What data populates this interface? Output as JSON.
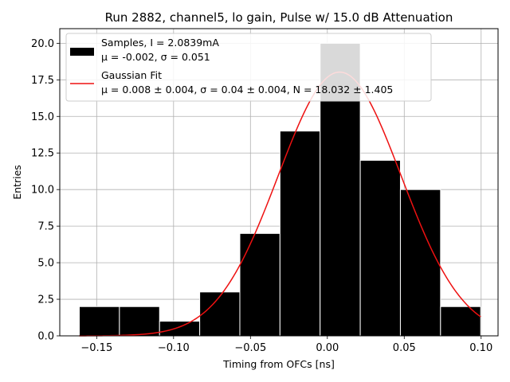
{
  "chart_data": {
    "type": "bar",
    "title": "Run 2882, channel5, lo gain, Pulse w/ 15.0 dB Attenuation",
    "xlabel": "Timing from OFCs [ns]",
    "ylabel": "Entries",
    "xlim": [
      -0.174,
      0.111
    ],
    "ylim": [
      0,
      21
    ],
    "xticks": [
      -0.15,
      -0.1,
      -0.05,
      0.0,
      0.05,
      0.1
    ],
    "xtick_labels": [
      "−0.15",
      "−0.10",
      "−0.05",
      "0.00",
      "0.05",
      "0.10"
    ],
    "yticks": [
      0.0,
      2.5,
      5.0,
      7.5,
      10.0,
      12.5,
      15.0,
      17.5,
      20.0
    ],
    "ytick_labels": [
      "0.0",
      "2.5",
      "5.0",
      "7.5",
      "10.0",
      "12.5",
      "15.0",
      "17.5",
      "20.0"
    ],
    "grid": true,
    "legend_position": "top-left",
    "histogram": {
      "bin_edges": [
        -0.1613,
        -0.1352,
        -0.1091,
        -0.083,
        -0.0569,
        -0.0308,
        -0.0047,
        0.0214,
        0.0475,
        0.0736,
        0.0997
      ],
      "counts": [
        2,
        2,
        1,
        3,
        7,
        14,
        20,
        12,
        10,
        2
      ],
      "color": "#000000",
      "overflow_color": "#c8c8c8",
      "edge_color": "#ffffff"
    },
    "gaussian_fit": {
      "mu": 0.008,
      "sigma": 0.04,
      "N": 18.032,
      "x_range": [
        -0.1613,
        0.0997
      ],
      "color": "#ee1111"
    },
    "legend": [
      {
        "kind": "patch",
        "color": "#000000",
        "line1": "Samples, I = 2.0839mA",
        "line2": "μ = -0.002, σ = 0.051"
      },
      {
        "kind": "line",
        "color": "#ee1111",
        "line1": "Gaussian Fit",
        "line2": "μ = 0.008 ± 0.004, σ = 0.04 ± 0.004, N = 18.032 ± 1.405"
      }
    ]
  }
}
